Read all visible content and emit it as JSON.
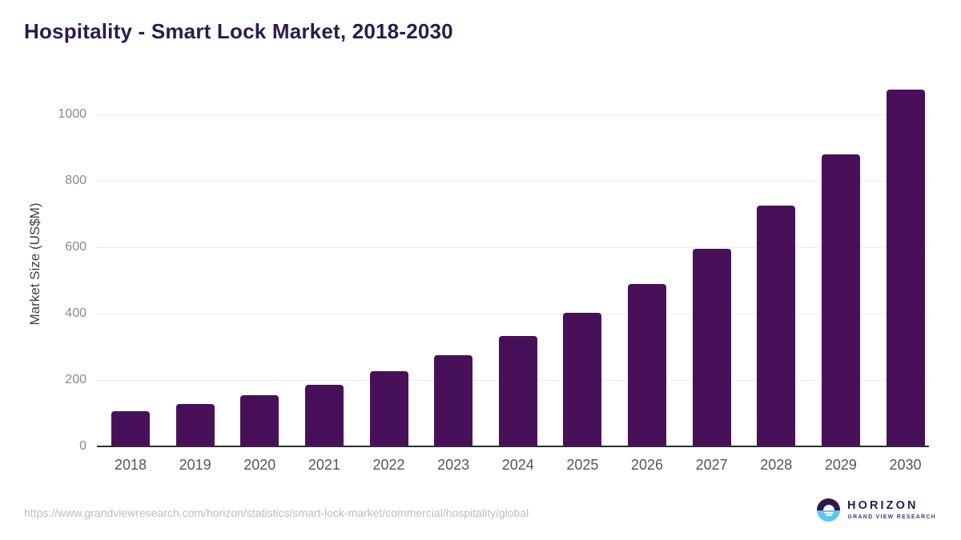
{
  "title": "Hospitality - Smart Lock Market, 2018-2030",
  "source_url": "https://www.grandviewresearch.com/horizon/statistics/smart-lock-market/commercial/hospitality/global",
  "logo": {
    "wordmark": "HORIZON",
    "subtitle": "GRAND VIEW RESEARCH"
  },
  "colors": {
    "bar": "#49105a",
    "title": "#2e1a4e",
    "logo_blue": "#5bc7f0",
    "grid": "#ebebeb",
    "axis": "#2f2f2f",
    "tick_label": "#8a8a8a",
    "axis_label": "#3f3f3f",
    "x_label": "#565656",
    "url": "#bdbdbd"
  },
  "chart_data": {
    "type": "bar",
    "title": "Hospitality - Smart Lock Market, 2018-2030",
    "categories": [
      "2018",
      "2019",
      "2020",
      "2021",
      "2022",
      "2023",
      "2024",
      "2025",
      "2026",
      "2027",
      "2028",
      "2029",
      "2030"
    ],
    "values": [
      105,
      128,
      154,
      185,
      226,
      275,
      333,
      403,
      490,
      595,
      725,
      880,
      1075
    ],
    "xlabel": "",
    "ylabel": "Market Size (US$M)",
    "ylim": [
      0,
      1100
    ],
    "yticks": [
      0,
      200,
      400,
      600,
      800,
      1000
    ],
    "grid": true,
    "legend": false,
    "series_color": "#49105a"
  }
}
